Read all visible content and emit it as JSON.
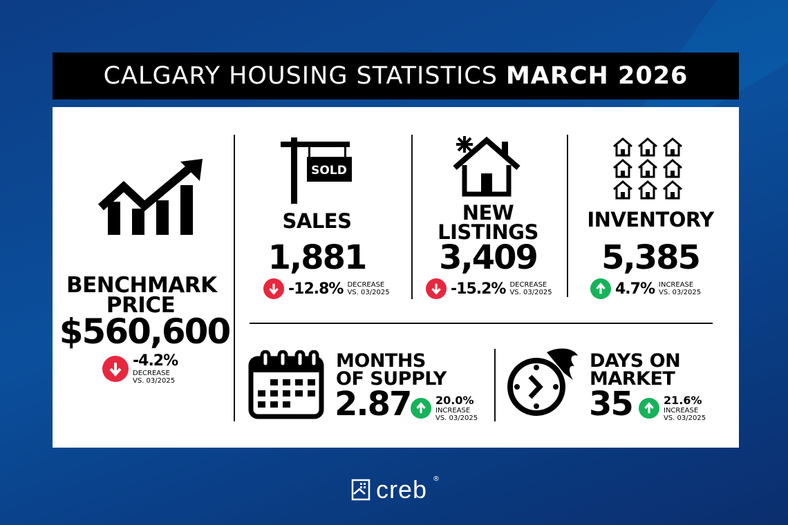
{
  "header": {
    "title_regular": "CALGARY HOUSING STATISTICS",
    "title_bold": "MARCH 2026"
  },
  "colors": {
    "decrease": "#e8273f",
    "increase": "#16b35a",
    "background": "#0b4f9c"
  },
  "benchmark": {
    "label_line1": "BENCHMARK",
    "label_line2": "PRICE",
    "value": "$560,600",
    "change": "-4.2%",
    "direction": "DECREASE",
    "compare": "VS. 03/2025",
    "icon": "rising-bar-chart-icon"
  },
  "sales": {
    "label": "SALES",
    "value": "1,881",
    "change": "-12.8%",
    "direction": "DECREASE",
    "compare": "VS. 03/2025",
    "icon": "sold-sign-icon",
    "sign_text": "SOLD"
  },
  "new_listings": {
    "label_line1": "NEW",
    "label_line2": "LISTINGS",
    "value": "3,409",
    "change": "-15.2%",
    "direction": "DECREASE",
    "compare": "VS. 03/2025",
    "icon": "new-house-icon"
  },
  "inventory": {
    "label": "INVENTORY",
    "value": "5,385",
    "change": "4.7%",
    "direction": "INCREASE",
    "compare": "VS. 03/2025",
    "icon": "houses-grid-icon"
  },
  "months_supply": {
    "label_line1": "MONTHS",
    "label_line2": "OF SUPPLY",
    "value": "2.87",
    "change": "20.0%",
    "direction": "INCREASE",
    "compare": "VS. 03/2025",
    "icon": "calendar-icon"
  },
  "days_on_market": {
    "label_line1": "DAYS ON",
    "label_line2": "MARKET",
    "value": "35",
    "change": "21.6%",
    "direction": "INCREASE",
    "compare": "VS. 03/2025",
    "icon": "fast-clock-icon"
  },
  "footer": {
    "brand": "creb",
    "registered": "®"
  }
}
